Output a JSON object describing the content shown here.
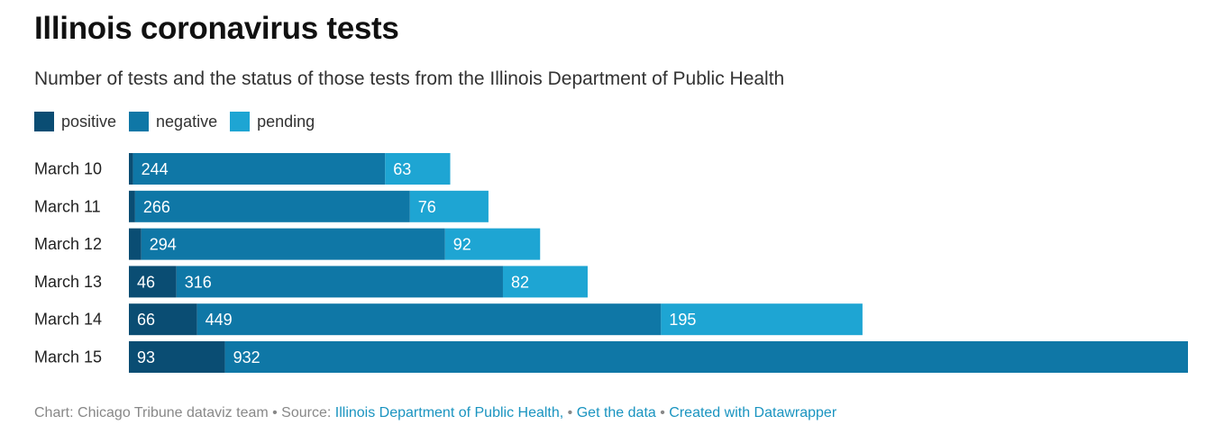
{
  "title": "Illinois coronavirus tests",
  "subtitle": "Number of tests and the status of those tests from the Illinois Department of Public Health",
  "legend": {
    "positive": "positive",
    "negative": "negative",
    "pending": "pending"
  },
  "colors": {
    "positive": "#0a4d73",
    "negative": "#0f77a6",
    "pending": "#1ea5d3"
  },
  "footer": {
    "credit": "Chart: Chicago Tribune dataviz team",
    "sep1": " • Source: ",
    "source": "Illinois Department of Public Health,",
    "sep2": " • ",
    "get_data": "Get the data",
    "sep3": " • ",
    "created": "Created with Datawrapper"
  },
  "chart_data": {
    "type": "bar",
    "orientation": "horizontal",
    "stacked": true,
    "legend_position": "top-left",
    "grid": false,
    "categories": [
      "March 10",
      "March 11",
      "March 12",
      "March 13",
      "March 14",
      "March 15"
    ],
    "series": [
      {
        "name": "positive",
        "values": [
          4,
          6,
          12,
          46,
          66,
          93
        ],
        "labels": [
          "",
          "",
          "",
          "46",
          "66",
          "93"
        ]
      },
      {
        "name": "negative",
        "values": [
          244,
          266,
          294,
          316,
          449,
          932
        ],
        "labels": [
          "244",
          "266",
          "294",
          "316",
          "449",
          "932"
        ]
      },
      {
        "name": "pending",
        "values": [
          63,
          76,
          92,
          82,
          195,
          0
        ],
        "labels": [
          "63",
          "76",
          "92",
          "82",
          "195",
          ""
        ]
      }
    ],
    "xlim": [
      0,
      1025
    ]
  }
}
